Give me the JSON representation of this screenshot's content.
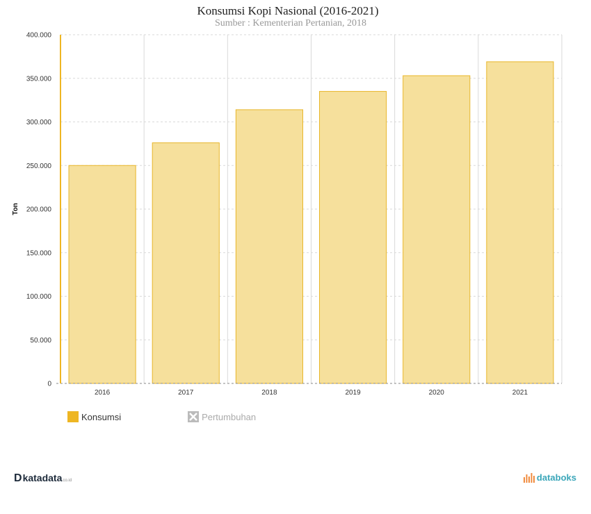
{
  "header": {
    "title": "Konsumsi Kopi Nasional (2016-2021)",
    "subtitle": "Sumber : Kementerian Pertanian, 2018"
  },
  "colors": {
    "bar_fill": "#f6e09c",
    "bar_stroke": "#e8b62a",
    "legend_swatch": "#eeb623",
    "axis": "#eeb623"
  },
  "chart_data": {
    "type": "bar",
    "title": "Konsumsi Kopi Nasional (2016-2021)",
    "subtitle": "Sumber : Kementerian Pertanian, 2018",
    "xlabel": "",
    "ylabel": "Ton",
    "categories": [
      "2016",
      "2017",
      "2018",
      "2019",
      "2020",
      "2021"
    ],
    "series": [
      {
        "name": "Konsumsi",
        "values": [
          250000,
          276000,
          314000,
          335000,
          353000,
          369000
        ]
      }
    ],
    "ylim": [
      0,
      400000
    ],
    "yticks": [
      0,
      50000,
      100000,
      150000,
      200000,
      250000,
      300000,
      350000,
      400000
    ],
    "ytick_labels": [
      "0",
      "50.000",
      "100.000",
      "150.000",
      "200.000",
      "250.000",
      "300.000",
      "350.000",
      "400.000"
    ],
    "grid": true,
    "legend_position": "bottom-left"
  },
  "legend": {
    "items": [
      {
        "label": "Konsumsi",
        "active": true
      },
      {
        "label": "Pertumbuhan",
        "active": false
      }
    ]
  },
  "branding": {
    "left_name": "katadata",
    "left_mark": "D",
    "left_suffix": "co.id",
    "right_name": "databoks"
  }
}
